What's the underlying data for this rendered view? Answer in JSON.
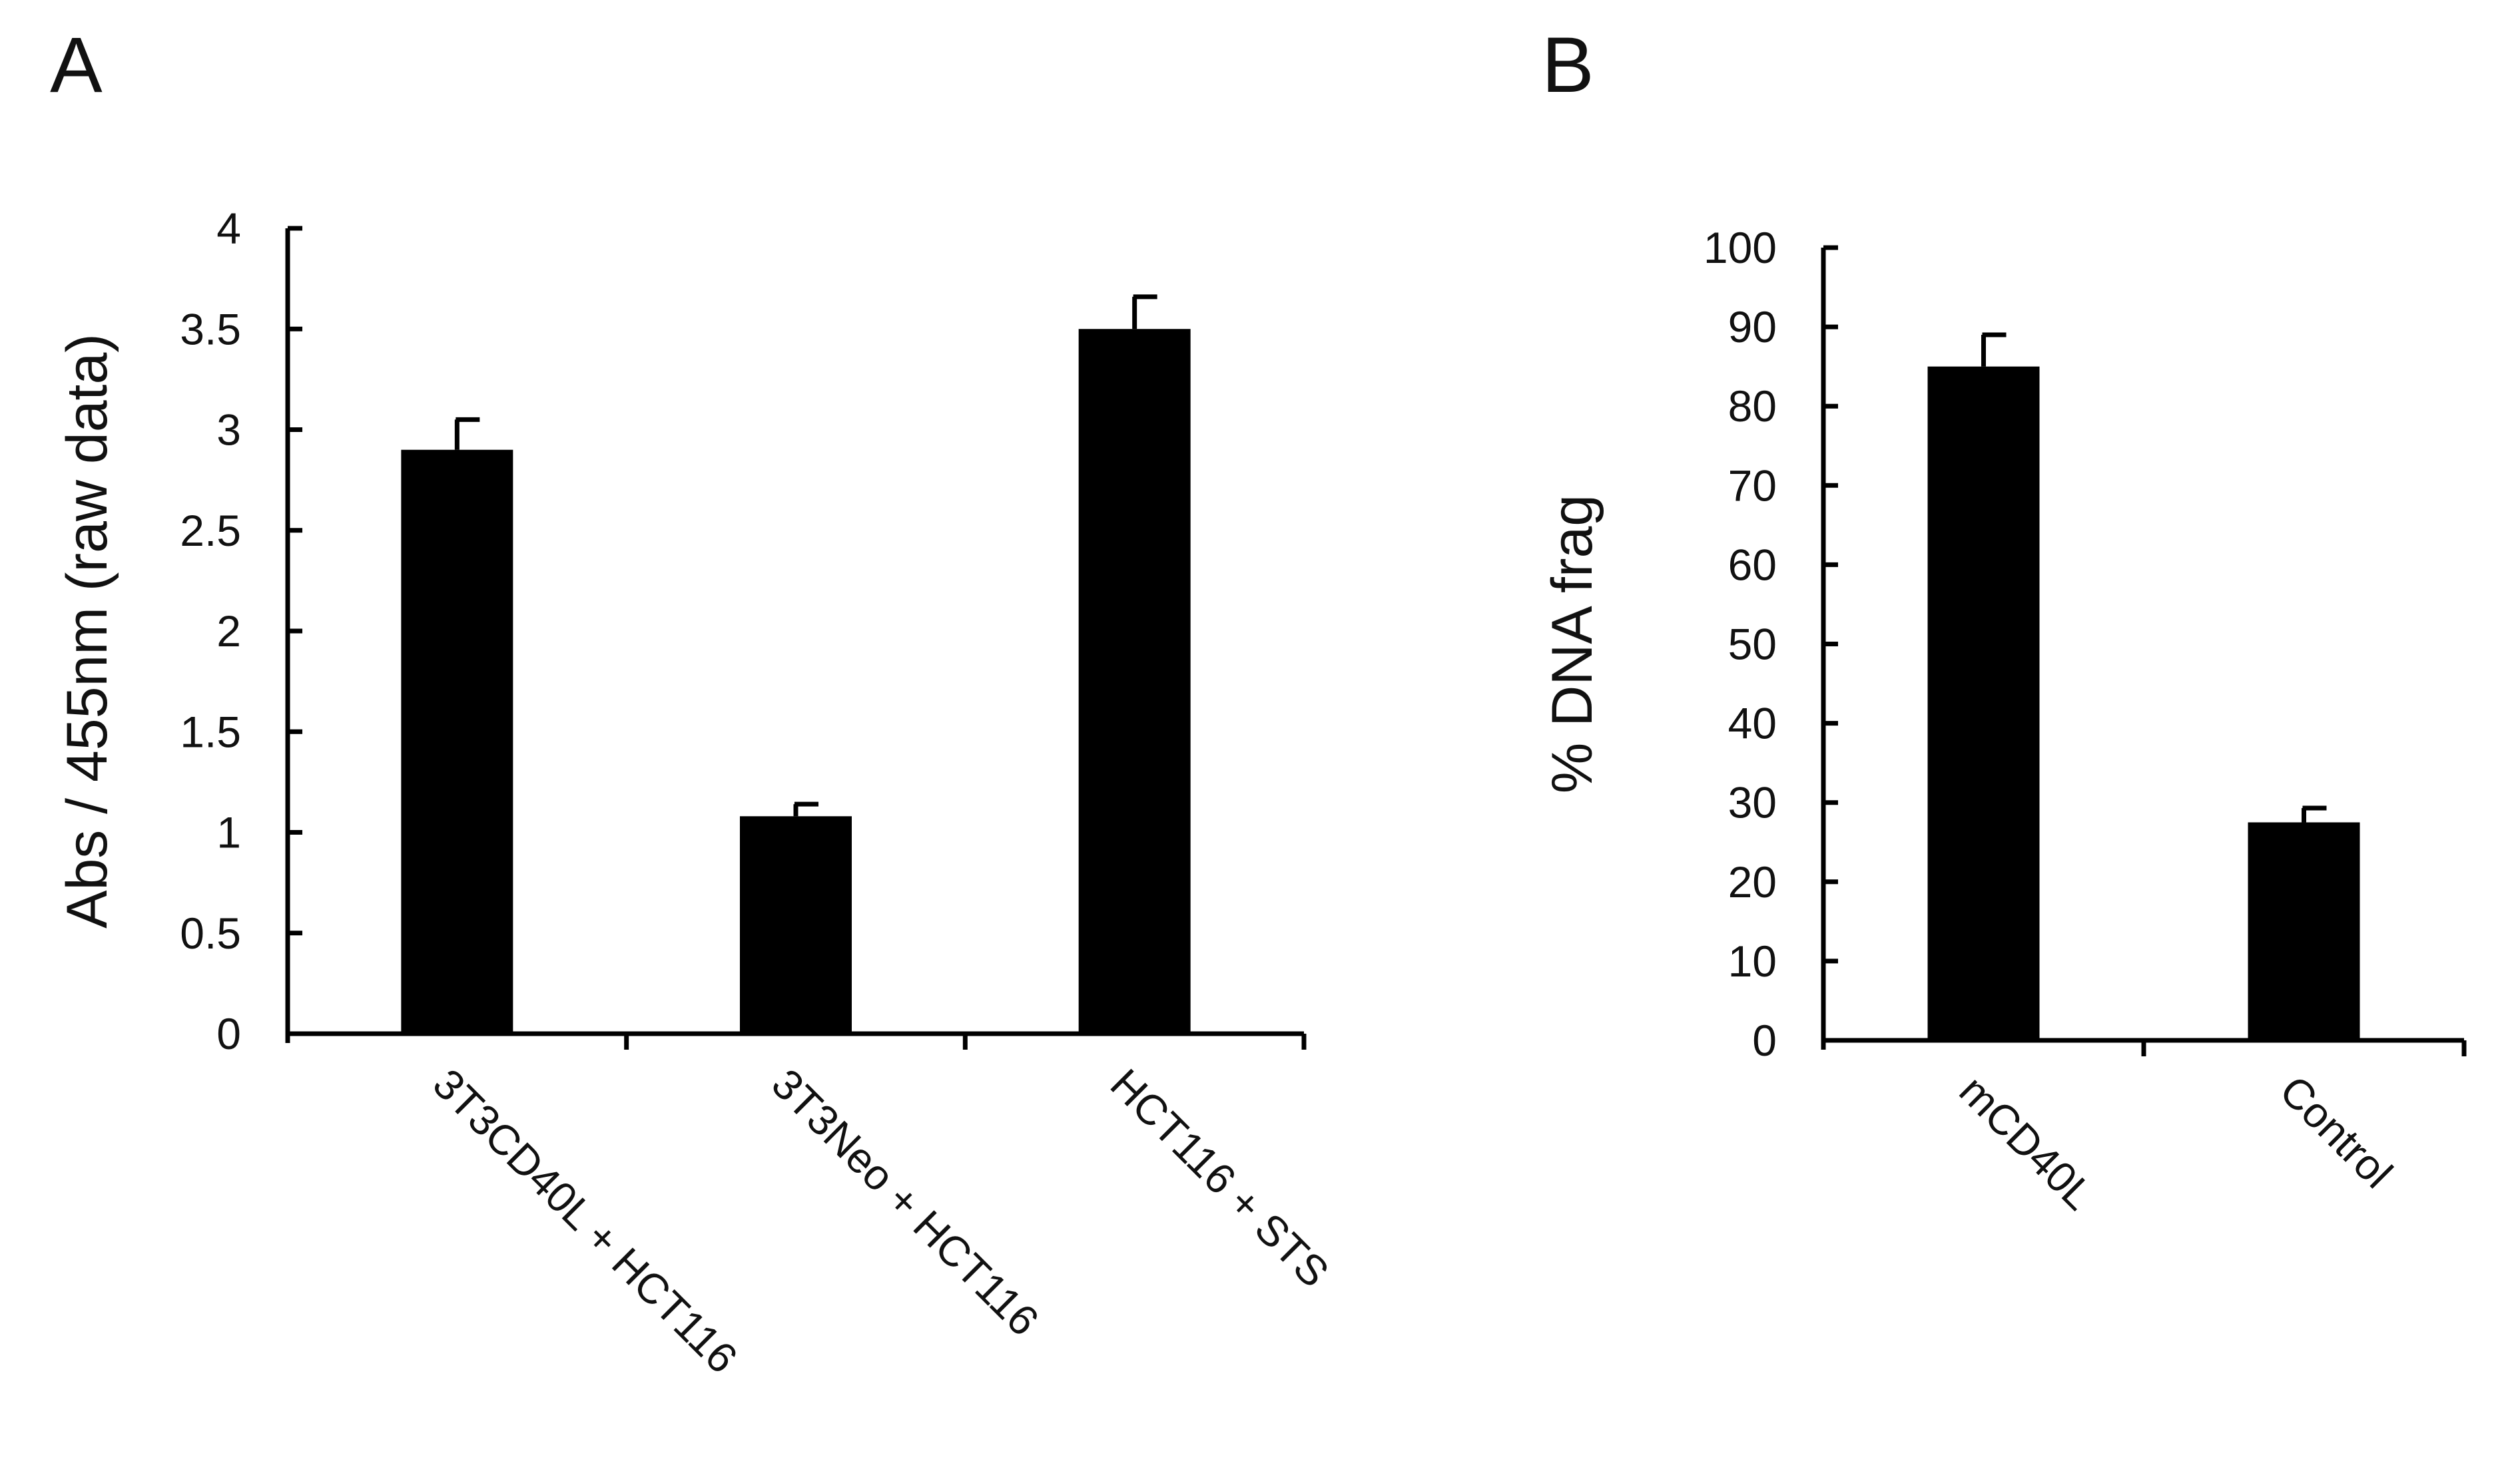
{
  "chart_data": [
    {
      "panel": "A",
      "type": "bar",
      "title": "",
      "xlabel": "",
      "ylabel": "Abs / 455nm (raw data)",
      "ylim": [
        0,
        4
      ],
      "yticks": [
        0,
        0.5,
        1,
        1.5,
        2,
        2.5,
        3,
        3.5,
        4
      ],
      "ytick_labels": [
        "0",
        "0.5",
        "1",
        "1.5",
        "2",
        "2.5",
        "3",
        "3.5",
        "4"
      ],
      "categories": [
        "3T3CD40L + HCT116",
        "3T3Neo + HCT116",
        "HCT116 + STS"
      ],
      "values": [
        2.9,
        1.08,
        3.5
      ],
      "errors": [
        0.15,
        0.06,
        0.16
      ],
      "colors": {
        "bar": "#000000"
      },
      "grid": false,
      "legend": "none"
    },
    {
      "panel": "B",
      "type": "bar",
      "title": "",
      "xlabel": "",
      "ylabel": "% DNA frag",
      "ylim": [
        0,
        100
      ],
      "yticks": [
        0,
        10,
        20,
        30,
        40,
        50,
        60,
        70,
        80,
        90,
        100
      ],
      "ytick_labels": [
        "0",
        "10",
        "20",
        "30",
        "40",
        "50",
        "60",
        "70",
        "80",
        "90",
        "100"
      ],
      "categories": [
        "mCD40L",
        "Control"
      ],
      "values": [
        85,
        27.5
      ],
      "errors": [
        4,
        1.8
      ],
      "colors": {
        "bar": "#000000"
      },
      "grid": false,
      "legend": "none"
    }
  ]
}
